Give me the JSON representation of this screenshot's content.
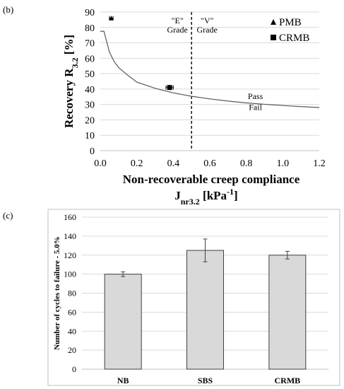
{
  "panels": [
    {
      "label": "(b)"
    },
    {
      "label": "(c)"
    }
  ],
  "chart_data": [
    {
      "type": "scatter",
      "xlabel": "Non-recoverable creep compliance",
      "xlabel2_main": "J",
      "xlabel2_sub": "nr3.2",
      "xlabel2_unit_pre": " [kPa",
      "xlabel2_sup": "-1",
      "xlabel2_unit_post": "]",
      "ylabel_main": "Recovery R",
      "ylabel_sub": "3.2",
      "ylabel_unit": " [%]",
      "xlim": [
        0.0,
        1.2
      ],
      "ylim": [
        0,
        90
      ],
      "x_ticks": [
        "0.0",
        "0.2",
        "0.4",
        "0.6",
        "0.8",
        "1.0",
        "1.2"
      ],
      "y_ticks": [
        "0",
        "10",
        "20",
        "30",
        "40",
        "50",
        "60",
        "70",
        "80",
        "90"
      ],
      "grid": "horizontal",
      "series": [
        {
          "name": "PMB",
          "marker": "triangle",
          "x": [
            0.06
          ],
          "y": [
            86
          ],
          "x_err": [
            0.01
          ]
        },
        {
          "name": "CRMB",
          "marker": "square",
          "x": [
            0.38
          ],
          "y": [
            41
          ],
          "x_err": [
            0.02
          ]
        }
      ],
      "curve": {
        "x": [
          0.0,
          0.02,
          0.05,
          0.075,
          0.1,
          0.15,
          0.2,
          0.3,
          0.4,
          0.5,
          0.6,
          0.7,
          0.8,
          0.9,
          1.0,
          1.1,
          1.2
        ],
        "y": [
          77.5,
          77.5,
          64,
          58,
          54,
          49,
          44.5,
          40.5,
          37.5,
          35.3,
          33.6,
          32.2,
          31,
          30.1,
          29.3,
          28.6,
          28
        ]
      },
      "threshold": {
        "x": 0.5,
        "left_label": [
          "\"E\"",
          "Grade"
        ],
        "right_label": [
          "\"V\"",
          "Grade"
        ]
      },
      "annotations": [
        "Pass",
        "Fail"
      ],
      "legend": "top-right"
    },
    {
      "type": "bar",
      "categories": [
        "NB",
        "SBS",
        "CRMB"
      ],
      "values": [
        100,
        125,
        120
      ],
      "errors": [
        2.5,
        12,
        4
      ],
      "ylabel": "Number of cycles to failure - 5.0%",
      "ylim": [
        0,
        160
      ],
      "y_ticks": [
        "0",
        "20",
        "40",
        "60",
        "80",
        "100",
        "120",
        "140",
        "160"
      ],
      "grid": "horizontal",
      "colors": {
        "bar_fill": "#d9d9d9",
        "bar_stroke": "#404040",
        "grid": "#d9d9d9",
        "frame": "#bfbfbf"
      }
    }
  ]
}
